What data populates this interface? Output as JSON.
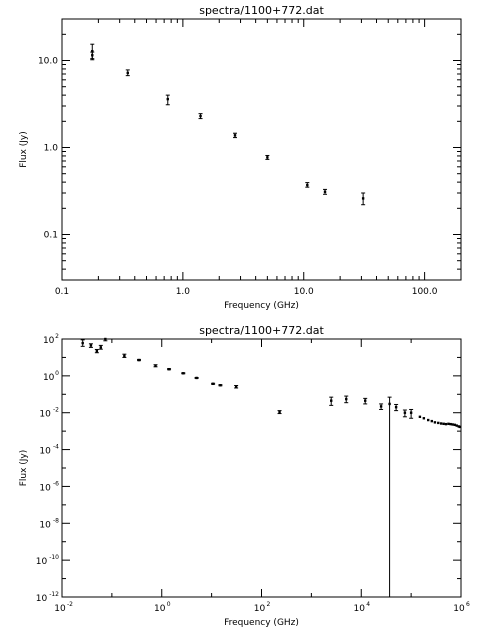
{
  "chart_data": [
    {
      "type": "scatter",
      "title": "spectra/1100+772.dat",
      "xlabel": "Frequency (GHz)",
      "ylabel": "Flux (Jy)",
      "xscale": "log",
      "yscale": "log",
      "xlim": [
        0.1,
        200
      ],
      "ylim": [
        0.03,
        30
      ],
      "xticklabels": [
        "0.1",
        "1.0",
        "10.0",
        "100.0"
      ],
      "yticklabels": [
        "0.1",
        "1.0",
        "10.0"
      ],
      "points": [
        {
          "x": 0.178,
          "y": 12.8,
          "ylo": 10.2,
          "yhi": 15.4
        },
        {
          "x": 0.178,
          "y": 11.5,
          "ylo": 10.5,
          "yhi": 12.5
        },
        {
          "x": 0.35,
          "y": 7.2,
          "ylo": 6.7,
          "yhi": 7.8
        },
        {
          "x": 0.75,
          "y": 3.6,
          "ylo": 3.1,
          "yhi": 4.0
        },
        {
          "x": 1.4,
          "y": 2.3,
          "ylo": 2.15,
          "yhi": 2.45
        },
        {
          "x": 2.7,
          "y": 1.38,
          "ylo": 1.3,
          "yhi": 1.46
        },
        {
          "x": 5.0,
          "y": 0.77,
          "ylo": 0.73,
          "yhi": 0.81
        },
        {
          "x": 10.7,
          "y": 0.37,
          "ylo": 0.35,
          "yhi": 0.395
        },
        {
          "x": 15.0,
          "y": 0.31,
          "ylo": 0.29,
          "yhi": 0.33
        },
        {
          "x": 31.0,
          "y": 0.26,
          "ylo": 0.22,
          "yhi": 0.3
        }
      ]
    },
    {
      "type": "scatter",
      "title": "spectra/1100+772.dat",
      "xlabel": "Frequency (GHz)",
      "ylabel": "Flux (Jy)",
      "xscale": "log",
      "yscale": "log",
      "xlim": [
        0.01,
        1000000
      ],
      "ylim": [
        1e-12,
        100
      ],
      "xticklabels": [
        {
          "base": "10",
          "exp": "-2"
        },
        {
          "base": "10",
          "exp": "0"
        },
        {
          "base": "10",
          "exp": "2"
        },
        {
          "base": "10",
          "exp": "4"
        },
        {
          "base": "10",
          "exp": "6"
        }
      ],
      "yticklabels": [
        {
          "base": "10",
          "exp": "-12"
        },
        {
          "base": "10",
          "exp": "-10"
        },
        {
          "base": "10",
          "exp": "-8"
        },
        {
          "base": "10",
          "exp": "-6"
        },
        {
          "base": "10",
          "exp": "-4"
        },
        {
          "base": "10",
          "exp": "-2"
        },
        {
          "base": "10",
          "exp": "0"
        },
        {
          "base": "10",
          "exp": "2"
        }
      ],
      "points": [
        {
          "x": 0.026,
          "y": 60,
          "ylo": 40,
          "yhi": 90
        },
        {
          "x": 0.038,
          "y": 45,
          "ylo": 35,
          "yhi": 55
        },
        {
          "x": 0.05,
          "y": 22,
          "ylo": 18,
          "yhi": 27
        },
        {
          "x": 0.06,
          "y": 35,
          "ylo": 28,
          "yhi": 45
        },
        {
          "x": 0.074,
          "y": 100,
          "ylo": 80,
          "yhi": 120
        },
        {
          "x": 0.178,
          "y": 12,
          "ylo": 10,
          "yhi": 15
        },
        {
          "x": 0.35,
          "y": 7.2,
          "ylo": 6.7,
          "yhi": 7.8
        },
        {
          "x": 0.75,
          "y": 3.6,
          "ylo": 3.1,
          "yhi": 4.0
        },
        {
          "x": 1.4,
          "y": 2.3,
          "ylo": 2.15,
          "yhi": 2.45
        },
        {
          "x": 2.7,
          "y": 1.38,
          "ylo": 1.3,
          "yhi": 1.46
        },
        {
          "x": 5.0,
          "y": 0.77,
          "ylo": 0.73,
          "yhi": 0.81
        },
        {
          "x": 10.7,
          "y": 0.37,
          "ylo": 0.35,
          "yhi": 0.395
        },
        {
          "x": 15.0,
          "y": 0.31,
          "ylo": 0.29,
          "yhi": 0.33
        },
        {
          "x": 31.0,
          "y": 0.26,
          "ylo": 0.22,
          "yhi": 0.3
        },
        {
          "x": 230,
          "y": 0.011,
          "ylo": 0.009,
          "yhi": 0.013
        },
        {
          "x": 2500,
          "y": 0.045,
          "ylo": 0.025,
          "yhi": 0.07
        },
        {
          "x": 5000,
          "y": 0.055,
          "ylo": 0.035,
          "yhi": 0.08
        },
        {
          "x": 12000,
          "y": 0.045,
          "ylo": 0.03,
          "yhi": 0.06
        },
        {
          "x": 25000,
          "y": 0.022,
          "ylo": 0.015,
          "yhi": 0.03
        },
        {
          "x": 37000,
          "y": 0.03,
          "ylo": 1e-12,
          "yhi": 0.07
        },
        {
          "x": 50000,
          "y": 0.02,
          "ylo": 0.013,
          "yhi": 0.028
        },
        {
          "x": 75000,
          "y": 0.01,
          "ylo": 0.006,
          "yhi": 0.014
        },
        {
          "x": 100000,
          "y": 0.01,
          "ylo": 0.005,
          "yhi": 0.015
        },
        {
          "x": 150000,
          "y": 0.006
        },
        {
          "x": 180000,
          "y": 0.005
        },
        {
          "x": 220000,
          "y": 0.004
        },
        {
          "x": 260000,
          "y": 0.0035
        },
        {
          "x": 300000,
          "y": 0.003
        },
        {
          "x": 350000,
          "y": 0.0028
        },
        {
          "x": 400000,
          "y": 0.0026
        },
        {
          "x": 450000,
          "y": 0.0025
        },
        {
          "x": 500000,
          "y": 0.0024
        },
        {
          "x": 560000,
          "y": 0.0025
        },
        {
          "x": 620000,
          "y": 0.0024
        },
        {
          "x": 680000,
          "y": 0.0023
        },
        {
          "x": 750000,
          "y": 0.0022
        },
        {
          "x": 820000,
          "y": 0.002
        },
        {
          "x": 900000,
          "y": 0.0018
        },
        {
          "x": 950000,
          "y": 0.0017
        }
      ]
    }
  ]
}
